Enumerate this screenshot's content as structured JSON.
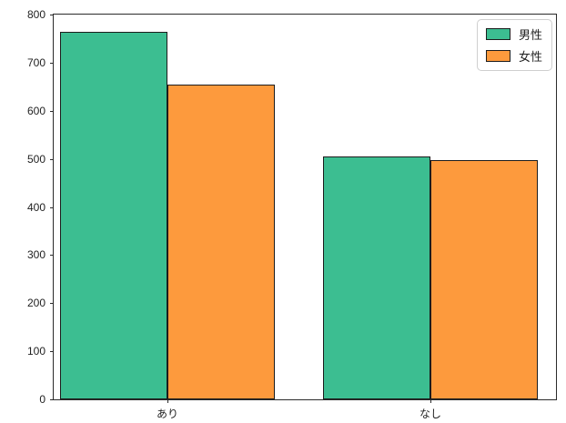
{
  "chart_data": {
    "type": "bar",
    "title": "",
    "xlabel": "",
    "ylabel": "",
    "categories": [
      "あり",
      "なし"
    ],
    "series": [
      {
        "name": "男性",
        "color": "#3CBE91",
        "values": [
          765,
          505
        ]
      },
      {
        "name": "女性",
        "color": "#FD9A3D",
        "values": [
          655,
          498
        ]
      }
    ],
    "ylim": [
      0,
      800
    ],
    "yticks": [
      0,
      100,
      200,
      300,
      400,
      500,
      600,
      700,
      800
    ],
    "grid": false,
    "legend_position": "upper-right",
    "bar_edge_color": "#1c1c1c",
    "background_color": "#ffffff",
    "spine_color": "#2b2b2b",
    "tick_label_color": "#1f1f1f"
  }
}
